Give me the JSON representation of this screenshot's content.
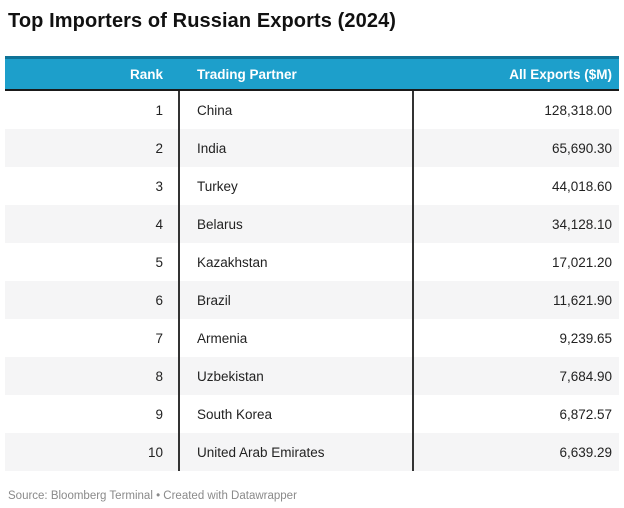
{
  "title": "Top Importers of Russian Exports (2024)",
  "footer": "Source: Bloomberg Terminal • Created with Datawrapper",
  "colors": {
    "header_bg": "#1D9FCB",
    "header_top_border": "#0F7397",
    "header_bottom_border": "#1A1A1A",
    "alt_row_bg": "#F5F5F6",
    "column_separator": "#333333",
    "header_text": "#FFFFFF",
    "body_text": "#222222",
    "footer_text": "#8A8A8A"
  },
  "chart_data": {
    "type": "table",
    "title": "Top Importers of Russian Exports (2024)",
    "columns": [
      "Rank",
      "Trading Partner",
      "All Exports ($M)"
    ],
    "rows": [
      {
        "rank": "1",
        "partner": "China",
        "exports": "128,318.00"
      },
      {
        "rank": "2",
        "partner": "India",
        "exports": "65,690.30"
      },
      {
        "rank": "3",
        "partner": "Turkey",
        "exports": "44,018.60"
      },
      {
        "rank": "4",
        "partner": "Belarus",
        "exports": "34,128.10"
      },
      {
        "rank": "5",
        "partner": "Kazakhstan",
        "exports": "17,021.20"
      },
      {
        "rank": "6",
        "partner": "Brazil",
        "exports": "11,621.90"
      },
      {
        "rank": "7",
        "partner": "Armenia",
        "exports": "9,239.65"
      },
      {
        "rank": "8",
        "partner": "Uzbekistan",
        "exports": "7,684.90"
      },
      {
        "rank": "9",
        "partner": "South Korea",
        "exports": "6,872.57"
      },
      {
        "rank": "10",
        "partner": "United Arab Emirates",
        "exports": "6,639.29"
      }
    ],
    "source": "Source: Bloomberg Terminal • Created with Datawrapper"
  }
}
